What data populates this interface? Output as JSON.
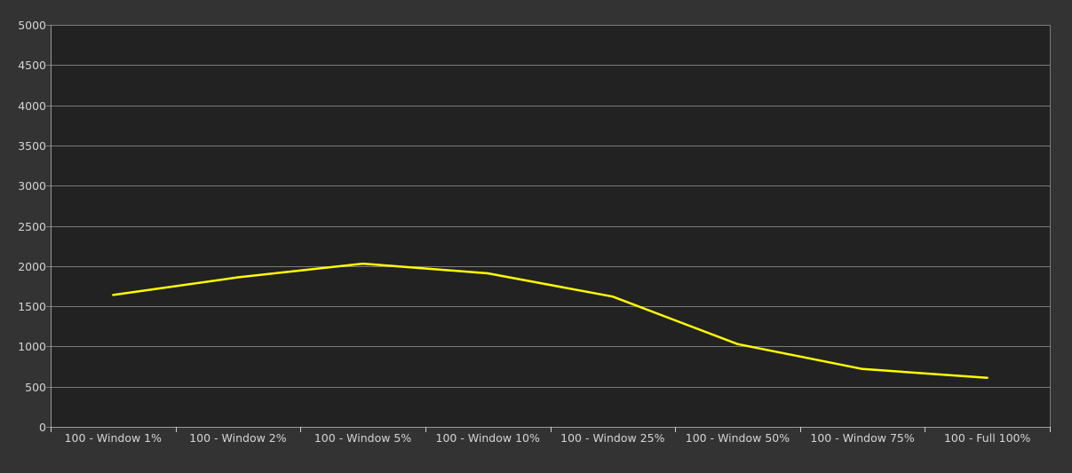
{
  "chart_data": {
    "type": "line",
    "title": "",
    "xlabel": "",
    "ylabel": "",
    "categories": [
      "100 - Window  1%",
      "100 - Window  2%",
      "100 - Window  5%",
      "100 - Window 10%",
      "100 - Window 25%",
      "100 - Window 50%",
      "100 - Window 75%",
      "100 - Full  100%"
    ],
    "series": [
      {
        "values": [
          1640,
          1860,
          2030,
          1910,
          1620,
          1030,
          720,
          610
        ],
        "color": "#ffff00"
      }
    ],
    "ylim": [
      0,
      5000
    ],
    "yticks": [
      0,
      500,
      1000,
      1500,
      2000,
      2500,
      3000,
      3500,
      4000,
      4500,
      5000
    ],
    "grid": "horizontal",
    "legend": "none",
    "colors": {
      "background": "#333333",
      "plot_background": "#222222",
      "grid": "#7a7a7a",
      "text": "#d4d4d4"
    }
  }
}
